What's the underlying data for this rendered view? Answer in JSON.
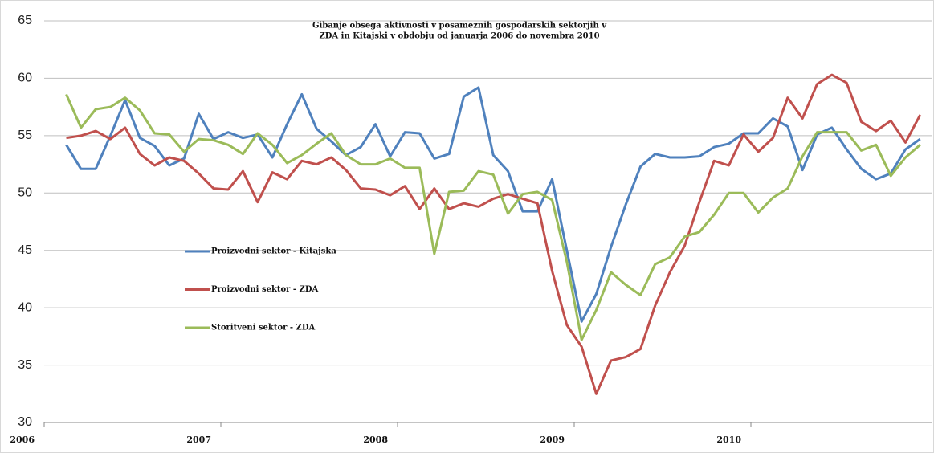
{
  "chart_data": {
    "type": "line",
    "title": [
      "Gibanje obsega aktivnosti v posameznih gospodarskih sektorjih v",
      "ZDA in Kitajski v obdobju od januarja 2006 do novembra 2010"
    ],
    "x": [
      2006.125,
      2006.208,
      2006.292,
      2006.375,
      2006.458,
      2006.542,
      2006.625,
      2006.708,
      2006.792,
      2006.875,
      2006.958,
      2007.042,
      2007.125,
      2007.208,
      2007.292,
      2007.375,
      2007.458,
      2007.542,
      2007.625,
      2007.708,
      2007.792,
      2007.875,
      2007.958,
      2008.042,
      2008.125,
      2008.208,
      2008.292,
      2008.375,
      2008.458,
      2008.542,
      2008.625,
      2008.708,
      2008.792,
      2008.875,
      2008.958,
      2009.042,
      2009.125,
      2009.208,
      2009.292,
      2009.375,
      2009.458,
      2009.542,
      2009.625,
      2009.708,
      2009.792,
      2009.875,
      2009.958,
      2010.042,
      2010.125,
      2010.208,
      2010.292,
      2010.375,
      2010.458,
      2010.542,
      2010.625,
      2010.708,
      2010.792,
      2010.875,
      2010.958
    ],
    "series": [
      {
        "name": "Proizvodni sektor - Kitajska",
        "color": "#4f81bd",
        "values": [
          54.2,
          52.1,
          52.1,
          55.0,
          58.1,
          54.8,
          54.1,
          52.4,
          53.0,
          56.9,
          54.7,
          55.3,
          54.8,
          55.1,
          53.1,
          56.0,
          58.6,
          55.6,
          54.5,
          53.3,
          54.0,
          56.0,
          53.2,
          55.3,
          55.2,
          53.0,
          53.4,
          58.4,
          59.2,
          53.3,
          51.9,
          48.4,
          48.4,
          51.2,
          45.0,
          38.8,
          41.2,
          45.3,
          49.0,
          52.3,
          53.4,
          53.1,
          53.1,
          53.2,
          54.0,
          54.3,
          55.2,
          55.2,
          56.5,
          55.8,
          52.0,
          55.1,
          55.7,
          53.8,
          52.1,
          51.2,
          51.7,
          53.8,
          54.7
        ]
      },
      {
        "name": "Proizvodni sektor - ZDA",
        "color": "#c0504d",
        "values": [
          54.8,
          55.0,
          55.4,
          54.7,
          55.7,
          53.4,
          52.4,
          53.1,
          52.8,
          51.7,
          50.4,
          50.3,
          51.9,
          49.2,
          51.8,
          51.2,
          52.8,
          52.5,
          53.1,
          52.0,
          50.4,
          50.3,
          49.8,
          50.6,
          48.6,
          50.4,
          48.6,
          49.1,
          48.8,
          49.5,
          49.9,
          49.5,
          49.1,
          43.2,
          38.5,
          36.6,
          32.5,
          35.4,
          35.7,
          36.4,
          40.2,
          43.1,
          45.4,
          49.2,
          52.8,
          52.4,
          55.1,
          53.6,
          54.8,
          58.3,
          56.5,
          59.5,
          60.3,
          59.6,
          56.2,
          55.4,
          56.3,
          54.4,
          56.8
        ]
      },
      {
        "name": "Storitveni sektor - ZDA",
        "color": "#9bbb59",
        "values": [
          58.6,
          55.7,
          57.3,
          57.5,
          58.3,
          57.2,
          55.2,
          55.1,
          53.6,
          54.7,
          54.6,
          54.2,
          53.4,
          55.2,
          54.2,
          52.6,
          53.3,
          54.3,
          55.2,
          53.3,
          52.5,
          52.5,
          53.0,
          52.2,
          52.2,
          44.7,
          50.1,
          50.2,
          51.9,
          51.6,
          48.2,
          49.9,
          50.1,
          49.4,
          44.0,
          37.2,
          39.8,
          43.1,
          42.0,
          41.1,
          43.8,
          44.4,
          46.2,
          46.6,
          48.1,
          50.0,
          50.0,
          48.3,
          49.6,
          50.4,
          53.2,
          55.3,
          55.3,
          55.3,
          53.7,
          54.2,
          51.5,
          53.1,
          54.2
        ]
      }
    ],
    "xlim": [
      2006,
      2011
    ],
    "xticks": [
      2006,
      2007,
      2008,
      2009,
      2010
    ],
    "ylim": [
      30,
      65
    ],
    "yticks": [
      30,
      35,
      40,
      45,
      50,
      55,
      60,
      65
    ],
    "grid": true
  }
}
